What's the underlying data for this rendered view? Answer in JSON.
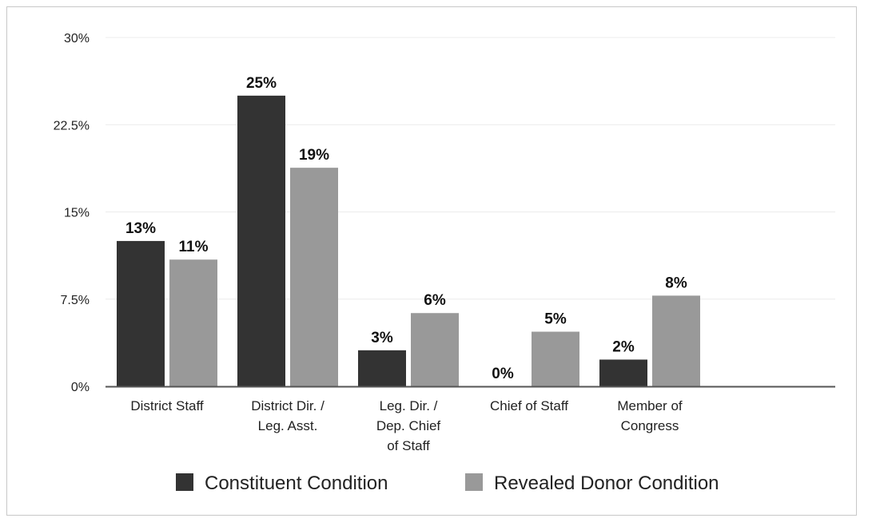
{
  "chart_data": {
    "type": "bar",
    "categories": [
      [
        "District Staff"
      ],
      [
        "District Dir. /",
        "Leg. Asst."
      ],
      [
        "Leg. Dir. /",
        "Dep. Chief",
        "of Staff"
      ],
      [
        "Chief of Staff"
      ],
      [
        "Member of",
        "Congress"
      ]
    ],
    "series": [
      {
        "name": "Constituent Condition",
        "color": "#333333",
        "values": [
          12.5,
          25.0,
          3.1,
          0.0,
          2.3
        ],
        "labels": [
          "13%",
          "25%",
          "3%",
          "0%",
          "2%"
        ]
      },
      {
        "name": "Revealed Donor Condition",
        "color": "#999999",
        "values": [
          10.9,
          18.8,
          6.3,
          4.7,
          7.8
        ],
        "labels": [
          "11%",
          "19%",
          "6%",
          "5%",
          "8%"
        ]
      }
    ],
    "yticks": [
      0,
      7.5,
      15,
      22.5,
      30
    ],
    "ytick_labels": [
      "0%",
      "7.5%",
      "15%",
      "22.5%",
      "30%"
    ],
    "ylim": [
      0,
      30
    ],
    "grid": true,
    "legend_position": "bottom"
  }
}
